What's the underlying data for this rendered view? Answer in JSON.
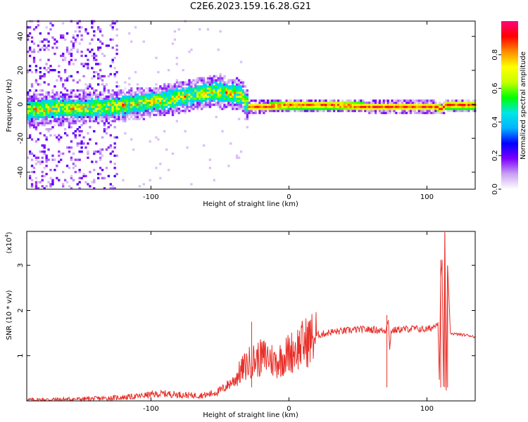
{
  "title": "C2E6.2023.159.16.28.G21",
  "chart_data": [
    {
      "type": "heatmap",
      "title": "C2E6.2023.159.16.28.G21",
      "xlabel": "Height of straight line (km)",
      "ylabel": "Frequency (Hz)",
      "xlim": [
        -190,
        135
      ],
      "ylim": [
        -50,
        49
      ],
      "x_ticks": [
        -100,
        0,
        100
      ],
      "y_ticks": [
        -40,
        -20,
        0,
        20,
        40
      ],
      "colorbar": {
        "label": "Normalized spectral amplitude",
        "range": [
          0.0,
          1.0
        ],
        "ticks": [
          0.0,
          0.2,
          0.4,
          0.6,
          0.8
        ],
        "colormap": [
          "#ffffff",
          "#c9a0f2",
          "#7d00ff",
          "#0000ff",
          "#00b4ff",
          "#00e6e6",
          "#00ff00",
          "#c8ff00",
          "#ffff00",
          "#ff8c00",
          "#ff0000",
          "#ff0080"
        ]
      },
      "ridge": {
        "x": [
          -190,
          -170,
          -150,
          -130,
          -110,
          -90,
          -70,
          -55,
          -45,
          -35,
          -30,
          -20,
          0,
          30,
          60,
          90,
          105,
          110,
          113,
          120,
          135
        ],
        "frequency": [
          -4,
          -3,
          -3,
          -2,
          0,
          2,
          5,
          7,
          6,
          5,
          -2,
          -2,
          -1,
          -1,
          -2,
          -2,
          -2,
          -3,
          -1,
          -1,
          -1
        ]
      },
      "noise_region_x": [
        -190,
        -125
      ]
    },
    {
      "type": "line",
      "title": "",
      "xlabel": "Height of straight line (km)",
      "ylabel": "SNR (10 * v/v)",
      "y_multiplier_label": "(x10",
      "y_multiplier_exp": "4",
      "y_multiplier_close": ")",
      "xlim": [
        -190,
        135
      ],
      "ylim": [
        0,
        3.75
      ],
      "x_ticks": [
        -100,
        0,
        100
      ],
      "y_ticks": [
        1,
        2,
        3
      ],
      "color": "#e8302a",
      "series": [
        {
          "x": [
            -190,
            -170,
            -150,
            -130,
            -110,
            -100,
            -90,
            -80,
            -70,
            -60,
            -50,
            -40,
            -35,
            -30,
            -25,
            -20,
            -15,
            -10,
            -5,
            0,
            5,
            10,
            15,
            20,
            30,
            40,
            50,
            60,
            70,
            72,
            73,
            74,
            80,
            90,
            100,
            104,
            106,
            108,
            109,
            110,
            111,
            112,
            113,
            114,
            115,
            117,
            120,
            130,
            135
          ],
          "values": [
            0.02,
            0.03,
            0.04,
            0.06,
            0.1,
            0.14,
            0.16,
            0.14,
            0.12,
            0.13,
            0.22,
            0.45,
            0.65,
            0.82,
            0.9,
            0.95,
            0.98,
            0.85,
            0.95,
            1.05,
            1.15,
            1.25,
            1.35,
            1.45,
            1.52,
            1.55,
            1.58,
            1.58,
            1.55,
            1.85,
            1.1,
            1.55,
            1.58,
            1.6,
            1.58,
            1.62,
            1.7,
            1.75,
            0.45,
            2.7,
            3.1,
            0.3,
            3.7,
            0.2,
            3.0,
            1.5,
            1.48,
            1.45,
            1.42
          ]
        }
      ],
      "spikes": [
        {
          "x": -27,
          "value": 1.75
        },
        {
          "x": 110,
          "value": 3.12
        },
        {
          "x": 113,
          "value": 3.75
        },
        {
          "x": 115,
          "value": 3.0
        },
        {
          "x": 71,
          "value": 1.9
        }
      ]
    }
  ]
}
